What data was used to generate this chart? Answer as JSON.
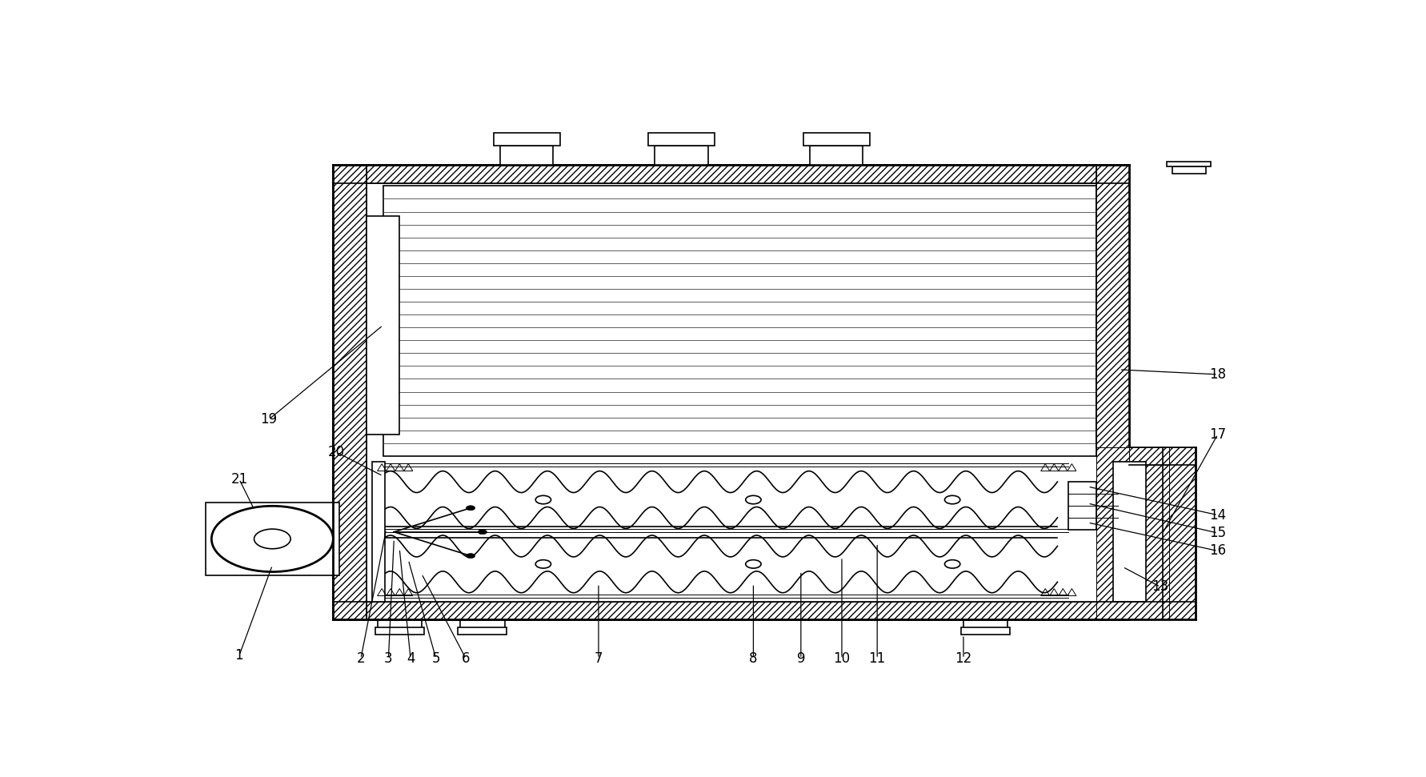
{
  "bg_color": "#ffffff",
  "line_color": "#000000",
  "fig_width": 17.83,
  "fig_height": 9.71,
  "label_color": "#000000",
  "ox": 0.14,
  "oy": 0.12,
  "ow": 0.72,
  "oh": 0.76,
  "wall": 0.03
}
